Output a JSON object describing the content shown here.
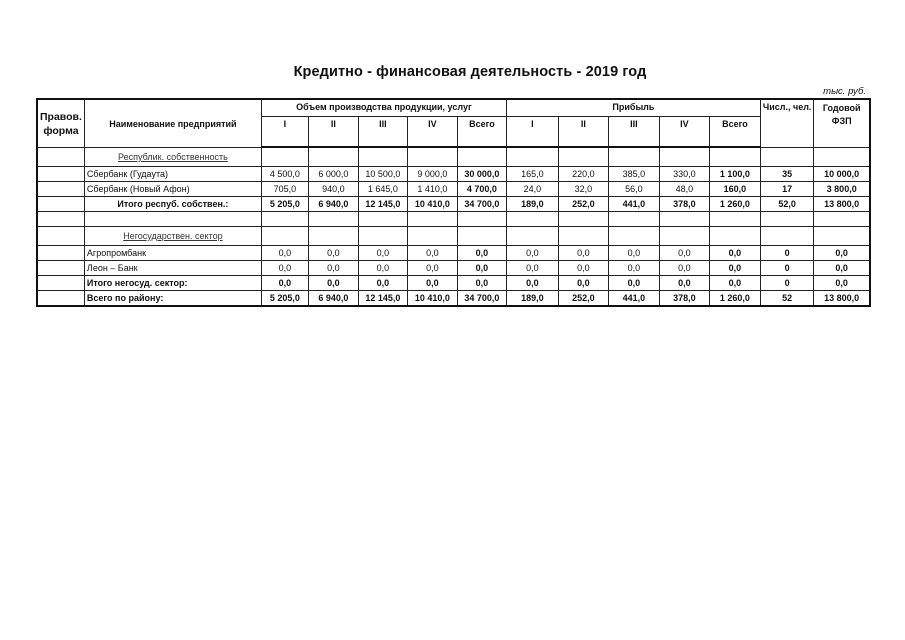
{
  "title": "Кредитно - финансовая деятельность  -  2019 год",
  "units": "тыс. руб.",
  "headers": {
    "legal_form": "Правов. форма",
    "name": "Наименование предприятий",
    "volume_group": "Объем производства продукции, услуг",
    "profit_group": "Прибыль",
    "quarters": [
      "I",
      "II",
      "III",
      "IV",
      "Всего"
    ],
    "headcount": "Числ., чел.",
    "payroll": "Годовой ФЗП"
  },
  "rows": [
    {
      "type": "section",
      "name": "Республик. собственность"
    },
    {
      "type": "data",
      "name": "Сбербанк (Гудаута)",
      "volume": [
        "4 500,0",
        "6 000,0",
        "10 500,0",
        "9 000,0",
        "30 000,0"
      ],
      "profit": [
        "165,0",
        "220,0",
        "385,0",
        "330,0",
        "1 100,0"
      ],
      "headcount": "35",
      "payroll": "10 000,0"
    },
    {
      "type": "data",
      "name": "Сбербанк (Новый Афон)",
      "volume": [
        "705,0",
        "940,0",
        "1 645,0",
        "1 410,0",
        "4 700,0"
      ],
      "profit": [
        "24,0",
        "32,0",
        "56,0",
        "48,0",
        "160,0"
      ],
      "headcount": "17",
      "payroll": "3 800,0"
    },
    {
      "type": "subtotal",
      "name": "Итого респуб. собствен.:",
      "volume": [
        "5 205,0",
        "6 940,0",
        "12 145,0",
        "10 410,0",
        "34 700,0"
      ],
      "profit": [
        "189,0",
        "252,0",
        "441,0",
        "378,0",
        "1 260,0"
      ],
      "headcount": "52,0",
      "payroll": "13 800,0"
    },
    {
      "type": "blank",
      "name": ""
    },
    {
      "type": "section",
      "name": "Негосударствен. сектор"
    },
    {
      "type": "data",
      "name": "Агропромбанк",
      "volume": [
        "0,0",
        "0,0",
        "0,0",
        "0,0",
        "0,0"
      ],
      "profit": [
        "0,0",
        "0,0",
        "0,0",
        "0,0",
        "0,0"
      ],
      "headcount": "0",
      "payroll": "0,0"
    },
    {
      "type": "data",
      "name": "Леон – Банк",
      "volume": [
        "0,0",
        "0,0",
        "0,0",
        "0,0",
        "0,0"
      ],
      "profit": [
        "0,0",
        "0,0",
        "0,0",
        "0,0",
        "0,0"
      ],
      "headcount": "0",
      "payroll": "0,0"
    },
    {
      "type": "total",
      "name": "Итого негосуд. сектор:",
      "volume": [
        "0,0",
        "0,0",
        "0,0",
        "0,0",
        "0,0"
      ],
      "profit": [
        "0,0",
        "0,0",
        "0,0",
        "0,0",
        "0,0"
      ],
      "headcount": "0",
      "payroll": "0,0"
    },
    {
      "type": "total",
      "name": "Всего по району:",
      "volume": [
        "5 205,0",
        "6 940,0",
        "12 145,0",
        "10 410,0",
        "34 700,0"
      ],
      "profit": [
        "189,0",
        "252,0",
        "441,0",
        "378,0",
        "1 260,0"
      ],
      "headcount": "52",
      "payroll": "13 800,0"
    }
  ]
}
